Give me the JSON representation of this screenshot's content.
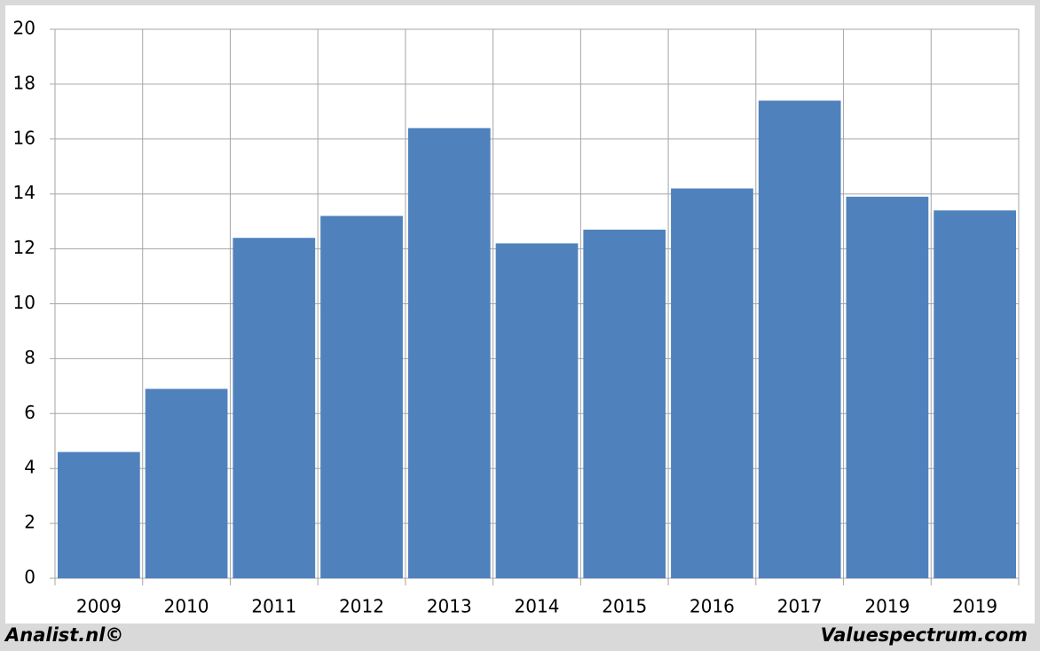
{
  "chart_data": {
    "type": "bar",
    "categories": [
      "2009",
      "2010",
      "2011",
      "2012",
      "2013",
      "2014",
      "2015",
      "2016",
      "2017",
      "2019",
      "2019"
    ],
    "values": [
      4.6,
      6.9,
      12.4,
      13.2,
      16.4,
      12.2,
      12.7,
      14.2,
      17.4,
      13.9,
      13.4
    ],
    "color": "#4f81bd",
    "ylim": [
      0,
      20
    ],
    "yticks": [
      0,
      2,
      4,
      6,
      8,
      10,
      12,
      14,
      16,
      18,
      20
    ],
    "grid": true,
    "annotations": [
      "Analist.nl©",
      "Valuespectrum.com"
    ]
  }
}
